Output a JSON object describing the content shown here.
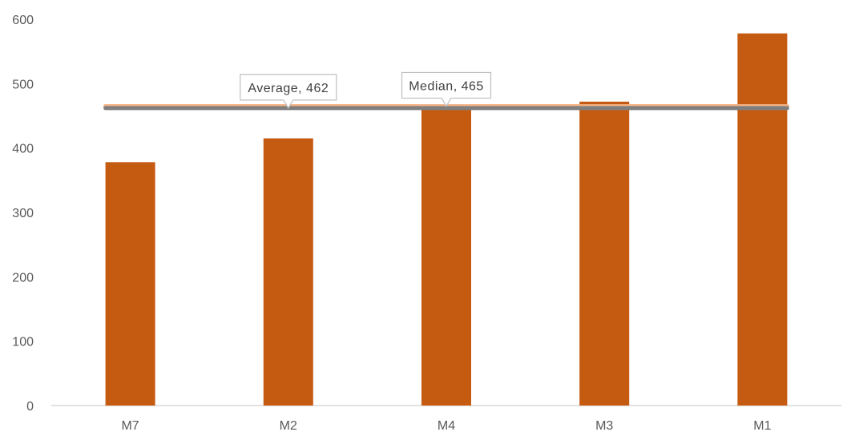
{
  "chart_data": {
    "type": "bar",
    "categories": [
      "M7",
      "M2",
      "M4",
      "M3",
      "M1"
    ],
    "values": [
      378,
      415,
      460,
      472,
      578
    ],
    "ylim": [
      0,
      600
    ],
    "yticks": [
      0,
      100,
      200,
      300,
      400,
      500,
      600
    ],
    "grid": false,
    "legend": "none",
    "bar_color": "#C55A11",
    "lines": [
      {
        "value": 465,
        "color": "#F4B183",
        "callout": {
          "name": "Median",
          "value": "465",
          "at_category": "M4"
        }
      },
      {
        "value": 462,
        "color": "#7F7F7F",
        "callout": {
          "name": "Average",
          "value": "462",
          "at_category": "M2"
        }
      }
    ]
  }
}
